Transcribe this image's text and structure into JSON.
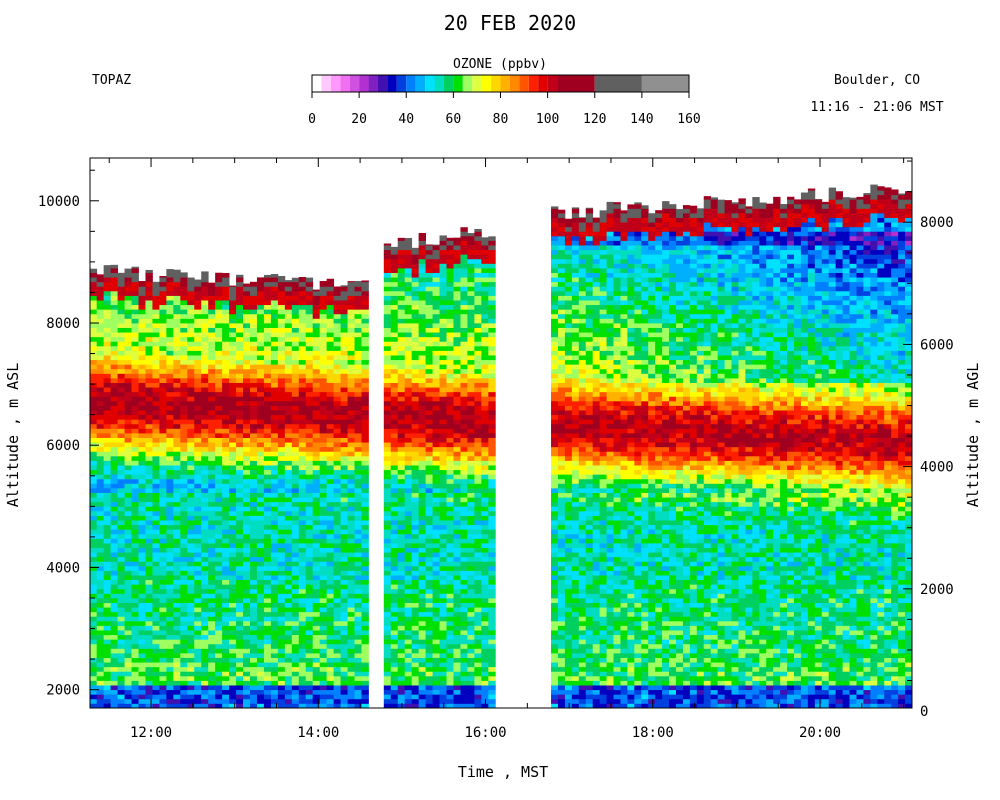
{
  "header": {
    "title": "20 FEB 2020",
    "instrument": "TOPAZ",
    "location": "Boulder, CO",
    "time_range": "11:16 - 21:06 MST",
    "colorbar_title": "OZONE (ppbv)"
  },
  "colorbar": {
    "tick_labels": [
      "0",
      "20",
      "40",
      "60",
      "80",
      "100",
      "120",
      "140",
      "160"
    ],
    "colors": [
      "#ffffff",
      "#ffc8ff",
      "#ff99ff",
      "#f070f0",
      "#d050e0",
      "#b030d0",
      "#8020c0",
      "#4010b0",
      "#0000c0",
      "#0040e0",
      "#0080ff",
      "#00b0ff",
      "#00e0ff",
      "#00ddc0",
      "#00d060",
      "#00e000",
      "#a0ff60",
      "#ddff40",
      "#ffff00",
      "#ffd700",
      "#ffb000",
      "#ff8800",
      "#ff5500",
      "#ff2000",
      "#e00000",
      "#c00018",
      "#a00020",
      "#606060",
      "#909090",
      "#c8c8c8"
    ],
    "bounds": [
      0,
      4,
      8,
      12,
      16,
      20,
      24,
      28,
      32,
      36,
      40,
      44,
      48,
      52,
      56,
      60,
      64,
      68,
      72,
      76,
      80,
      84,
      88,
      92,
      96,
      100,
      104,
      120,
      140,
      160
    ]
  },
  "chart_data": {
    "type": "heatmap",
    "title": "20 FEB 2020",
    "xlabel": "Time , MST",
    "ylabel": "Altitude , m ASL",
    "ylabel_right": "Altitude , m AGL",
    "x_ticks": [
      "12:00",
      "14:00",
      "16:00",
      "18:00",
      "20:00"
    ],
    "y_ticks": [
      "2000",
      "4000",
      "6000",
      "8000",
      "10000"
    ],
    "y_ticks_right": [
      "0",
      "2000",
      "4000",
      "6000",
      "8000"
    ],
    "x_range_hours": [
      11.27,
      21.1
    ],
    "y_range_m_asl": [
      1700,
      10700
    ],
    "agl_offset_m": 1650,
    "colorbar_range_ppbv": [
      0,
      160
    ],
    "segments": [
      {
        "start": "11:16",
        "end": "14:36",
        "top_m_asl": [
          8850,
          8600
        ]
      },
      {
        "start": "14:47",
        "end": "16:07",
        "top_m_asl": [
          9300,
          9500
        ]
      },
      {
        "start": "16:47",
        "end": "21:06",
        "top_m_asl": [
          9800,
          10200
        ]
      }
    ],
    "profile_layers": [
      {
        "alt_m_asl": [
          1700,
          2000
        ],
        "ozone_ppbv": 40
      },
      {
        "alt_m_asl": [
          2000,
          3000
        ],
        "ozone_ppbv": 65
      },
      {
        "alt_m_asl": [
          3000,
          4500
        ],
        "ozone_ppbv": 60
      },
      {
        "alt_m_asl": [
          4500,
          5300
        ],
        "ozone_ppbv": 52
      },
      {
        "alt_m_asl": [
          5300,
          6500
        ],
        "ozone_ppbv": 88
      },
      {
        "alt_m_asl": [
          6500,
          7000
        ],
        "ozone_ppbv": 100
      },
      {
        "alt_m_asl": [
          7000,
          8000
        ],
        "ozone_ppbv": 74
      },
      {
        "alt_m_asl": [
          8000,
          9500
        ],
        "ozone_ppbv": 50
      },
      {
        "alt_m_asl": [
          9500,
          10000
        ],
        "ozone_ppbv": 105
      }
    ]
  }
}
